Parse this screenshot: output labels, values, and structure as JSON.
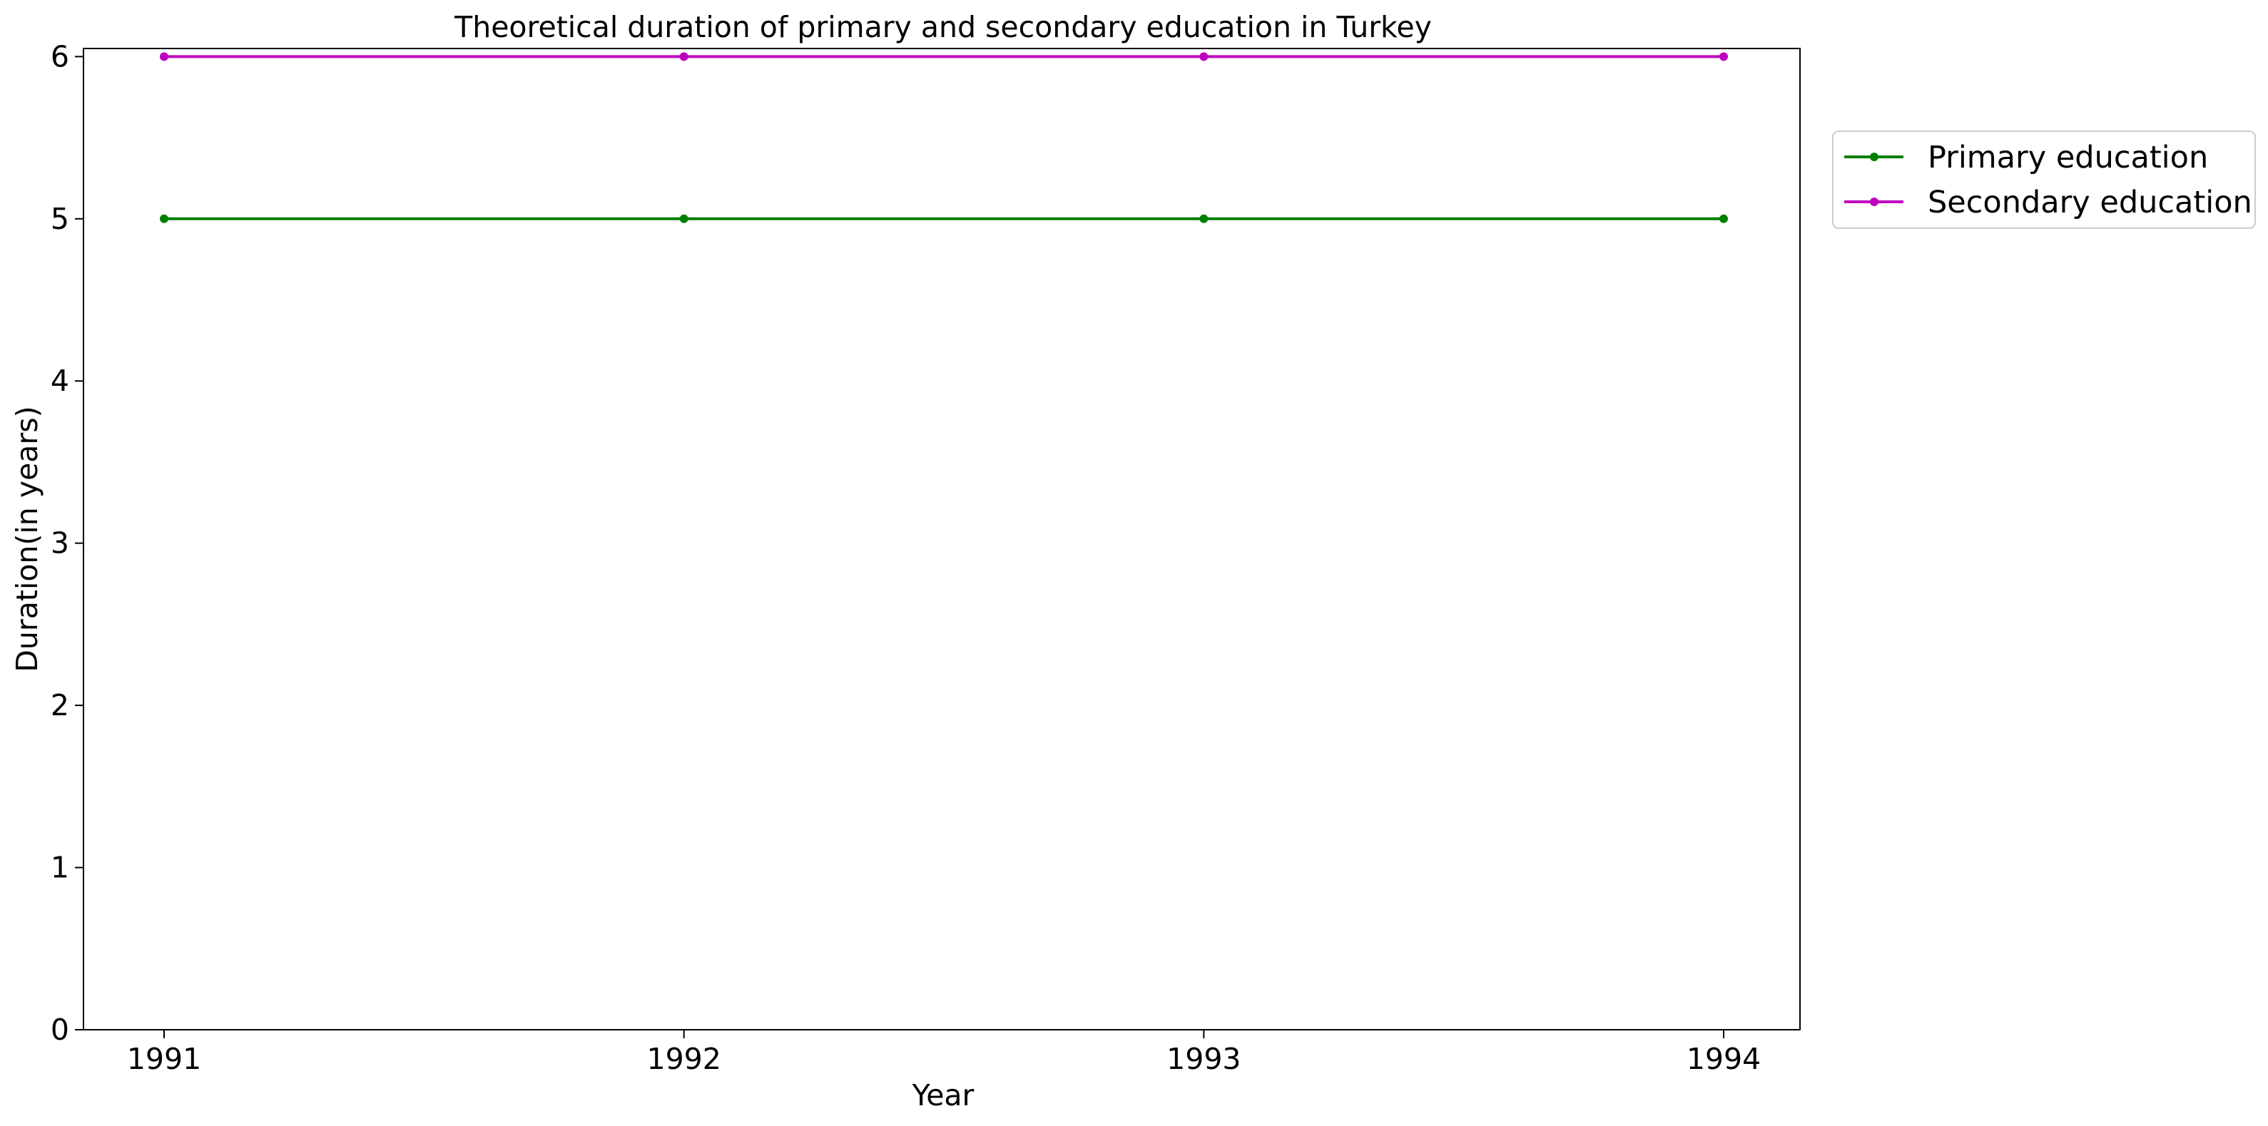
{
  "chart_data": {
    "type": "line",
    "title": "Theoretical duration of primary and secondary education in Turkey",
    "xlabel": "Year",
    "ylabel": "Duration(in years)",
    "x": [
      1991,
      1992,
      1993,
      1994
    ],
    "xticks": [
      "1991",
      "1992",
      "1993",
      "1994"
    ],
    "yticks": [
      "0",
      "1",
      "2",
      "3",
      "4",
      "5",
      "6"
    ],
    "ylim": [
      0,
      6.05
    ],
    "grid": false,
    "legend_position": "upper right outside",
    "series": [
      {
        "name": "Primary education",
        "values": [
          5,
          5,
          5,
          5
        ],
        "color": "#008000"
      },
      {
        "name": "Secondary education",
        "values": [
          6,
          6,
          6,
          6
        ],
        "color": "#bf00bf"
      }
    ]
  }
}
